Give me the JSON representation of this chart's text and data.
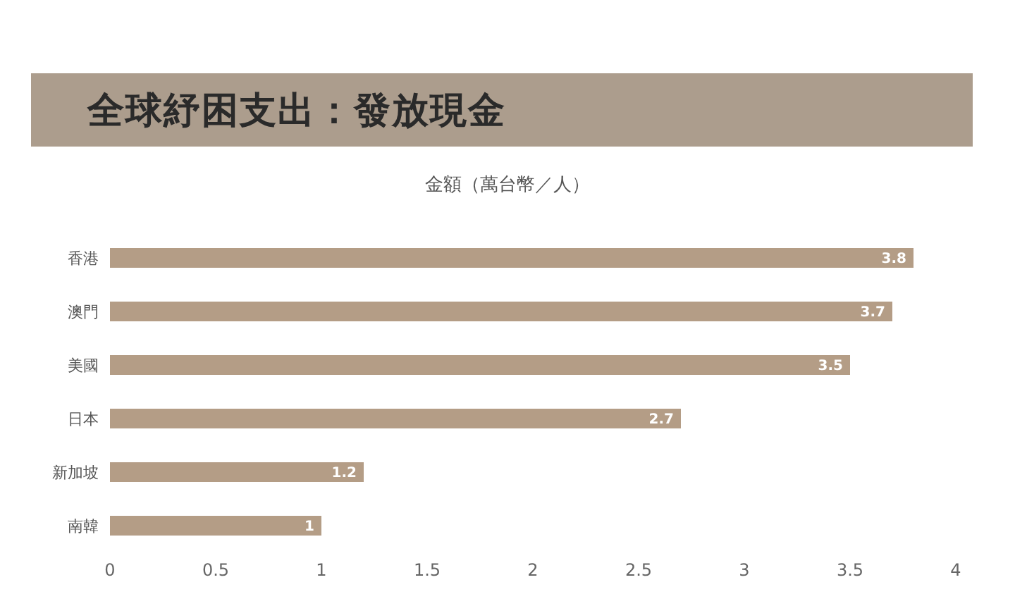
{
  "chart_data": {
    "type": "bar",
    "orientation": "horizontal",
    "title": "全球紓困支出：發放現金",
    "xlabel": "金額（萬台幣／人）",
    "categories": [
      "香港",
      "澳門",
      "美國",
      "日本",
      "新加坡",
      "南韓"
    ],
    "values": [
      3.8,
      3.7,
      3.5,
      2.7,
      1.2,
      1
    ],
    "color": "#b49d86",
    "xlim": [
      0,
      4
    ],
    "xticks": [
      0,
      0.5,
      1,
      1.5,
      2,
      2.5,
      3,
      3.5,
      4
    ],
    "data_labels": true
  }
}
